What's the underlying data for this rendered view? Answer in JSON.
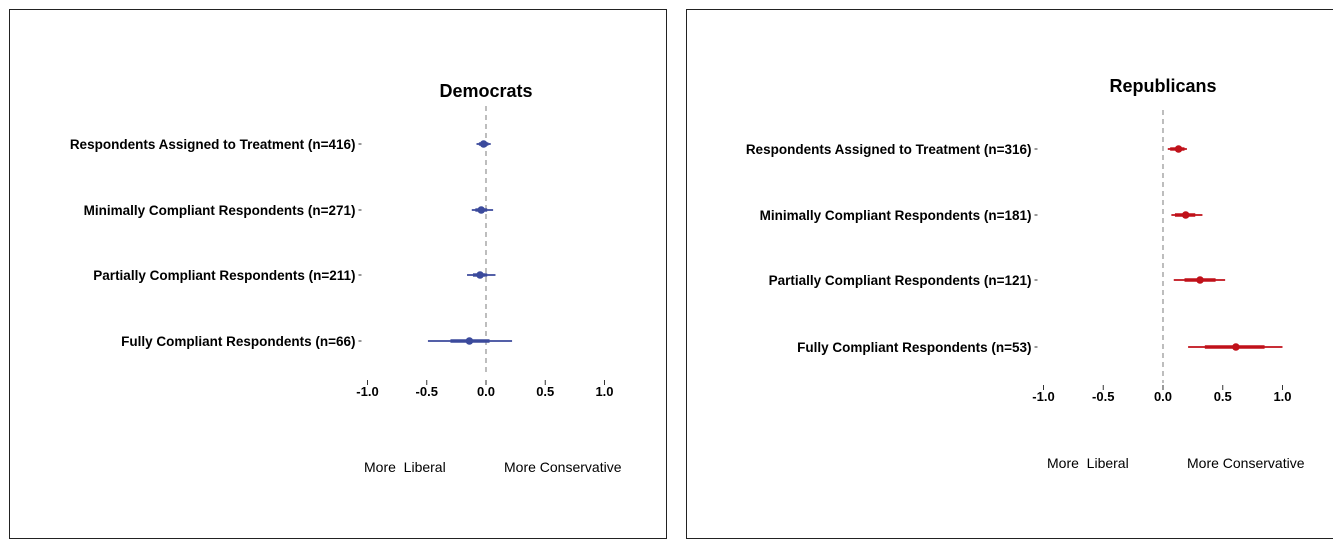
{
  "chart_data": [
    {
      "type": "scatter",
      "title": "Democrats",
      "color": "#3b4a9c",
      "categories": [
        "Respondents Assigned to Treatment (n=416)",
        "Minimally Compliant Respondents (n=271)",
        "Partially Compliant Respondents (n=211)",
        "Fully Compliant Respondents (n=66)"
      ],
      "values": [
        -0.02,
        -0.04,
        -0.05,
        -0.14
      ],
      "ci_thick": [
        [
          -0.06,
          0.02
        ],
        [
          -0.09,
          0.01
        ],
        [
          -0.11,
          0.01
        ],
        [
          -0.3,
          0.03
        ]
      ],
      "ci_thin": [
        [
          -0.08,
          0.04
        ],
        [
          -0.12,
          0.06
        ],
        [
          -0.16,
          0.08
        ],
        [
          -0.49,
          0.22
        ]
      ],
      "ticks": [
        "-1.0",
        "-0.5",
        "0.0",
        "0.5",
        "1.0"
      ],
      "xlim": [
        -1.0,
        1.0
      ],
      "reference_line": 0,
      "left_label": "More  Liberal",
      "right_label": "More Conservative"
    },
    {
      "type": "scatter",
      "title": "Republicans",
      "color": "#c0111a",
      "categories": [
        "Respondents Assigned to Treatment (n=316)",
        "Minimally Compliant Respondents (n=181)",
        "Partially Compliant Respondents (n=121)",
        "Fully Compliant Respondents (n=53)"
      ],
      "values": [
        0.13,
        0.19,
        0.31,
        0.61
      ],
      "ci_thick": [
        [
          0.06,
          0.18
        ],
        [
          0.1,
          0.27
        ],
        [
          0.18,
          0.44
        ],
        [
          0.35,
          0.85
        ]
      ],
      "ci_thin": [
        [
          0.04,
          0.2
        ],
        [
          0.07,
          0.33
        ],
        [
          0.09,
          0.52
        ],
        [
          0.21,
          1.0
        ]
      ],
      "ticks": [
        "-1.0",
        "-0.5",
        "0.0",
        "0.5",
        "1.0"
      ],
      "xlim": [
        -1.0,
        1.0
      ],
      "reference_line": 0,
      "left_label": "More  Liberal",
      "right_label": "More Conservative"
    }
  ]
}
